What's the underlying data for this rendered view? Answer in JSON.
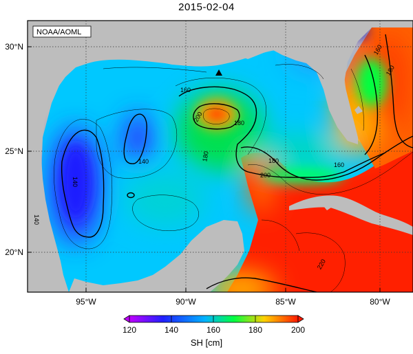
{
  "title": "2015-02-04",
  "credit": "NOAA/AOML",
  "lat_labels": [
    "30°N",
    "25°N",
    "20°N"
  ],
  "lon_labels": [
    "95°W",
    "90°W",
    "85°W",
    "80°W"
  ],
  "contour_labels": [
    "160",
    "180",
    "140",
    "140",
    "200",
    "180",
    "180",
    "200",
    "160",
    "160",
    "180",
    "220",
    "140"
  ],
  "colorbar": {
    "label": "SH [cm]",
    "ticks": [
      "120",
      "140",
      "160",
      "180",
      "200"
    ],
    "colors": [
      "#c000ff",
      "#2020ff",
      "#00b4ff",
      "#00ff40",
      "#ffd000",
      "#ff1a00"
    ]
  },
  "colors": {
    "land": "#bdbdbd",
    "frame": "#000000"
  }
}
